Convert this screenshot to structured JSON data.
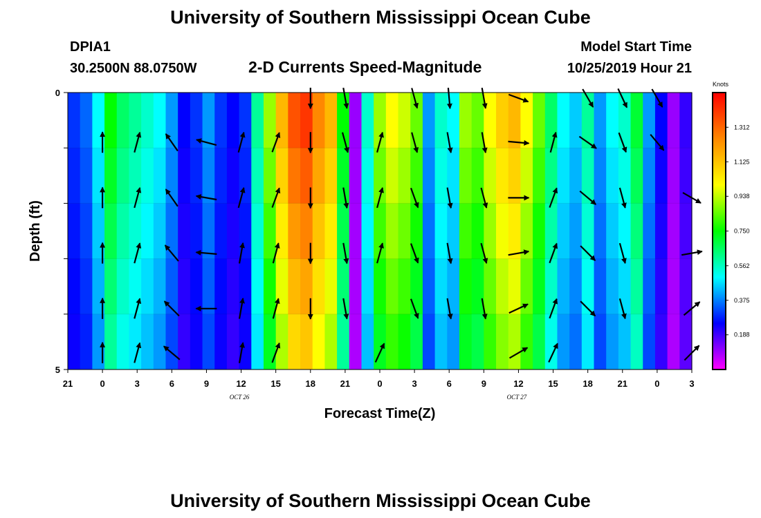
{
  "header": {
    "title": "University of Southern Mississippi Ocean Cube",
    "station": "DPIA1",
    "coords": "30.2500N 88.0750W",
    "subtitle": "2-D Currents Speed-Magnitude",
    "start_label": "Model Start Time",
    "start_value": "10/25/2019 Hour 21"
  },
  "footer": {
    "title": "University of Southern Mississippi Ocean Cube"
  },
  "colors": {
    "scale": [
      "#ff00ff",
      "#0000ff",
      "#00ffff",
      "#00ff00",
      "#ffff00",
      "#ff8800",
      "#ff0000"
    ]
  },
  "chart_data": {
    "type": "heatmap",
    "title": "2-D Currents Speed-Magnitude",
    "xlabel": "Forecast Time(Z)",
    "ylabel": "Depth (ft)",
    "x_tick_labels": [
      "21",
      "0",
      "3",
      "6",
      "9",
      "12",
      "15",
      "18",
      "21",
      "0",
      "3",
      "6",
      "9",
      "12",
      "15",
      "18",
      "21",
      "0",
      "3"
    ],
    "date_labels": [
      {
        "text": "OCT 26",
        "after_tick": 5
      },
      {
        "text": "OCT 27",
        "after_tick": 13
      }
    ],
    "y_ticks": [
      {
        "value": 0,
        "label": "0"
      },
      {
        "value": 1,
        "label": ""
      },
      {
        "value": 2,
        "label": ""
      },
      {
        "value": 3,
        "label": ""
      },
      {
        "value": 4,
        "label": ""
      },
      {
        "value": 5,
        "label": "5"
      }
    ],
    "ylim": [
      0,
      5
    ],
    "colorbar": {
      "unit": "Knots",
      "range": [
        0,
        1.5
      ],
      "tick_labels": [
        "0.188",
        "0.375",
        "0.562",
        "0.750",
        "0.938",
        "1.125",
        "1.312"
      ]
    },
    "speed_profile_knots": [
      0.3,
      0.35,
      0.5,
      0.75,
      0.65,
      0.6,
      0.55,
      0.5,
      0.4,
      0.25,
      0.3,
      0.4,
      0.3,
      0.25,
      0.3,
      0.6,
      0.9,
      1.15,
      1.35,
      1.4,
      1.25,
      1.15,
      0.75,
      0.1,
      0.55,
      0.9,
      1.0,
      0.95,
      0.85,
      0.4,
      0.55,
      0.5,
      0.9,
      0.85,
      1.0,
      1.1,
      1.15,
      1.0,
      0.85,
      0.65,
      0.5,
      0.45,
      0.6,
      0.4,
      0.5,
      0.55,
      0.7,
      0.4,
      0.25,
      0.1,
      0.2
    ],
    "vector_rows": [
      {
        "depth": 0.1,
        "dir_deg": [
          null,
          null,
          null,
          null,
          null,
          null,
          null,
          180,
          170,
          null,
          165,
          175,
          170,
          110,
          null,
          150,
          155,
          150,
          null
        ]
      },
      {
        "depth": 0.9,
        "dir_deg": [
          null,
          0,
          15,
          -35,
          -75,
          15,
          20,
          180,
          165,
          15,
          165,
          170,
          170,
          95,
          15,
          125,
          160,
          140,
          null
        ]
      },
      {
        "depth": 1.9,
        "dir_deg": [
          null,
          0,
          15,
          -35,
          -80,
          15,
          20,
          180,
          170,
          15,
          160,
          170,
          165,
          90,
          20,
          130,
          165,
          null,
          120
        ]
      },
      {
        "depth": 2.9,
        "dir_deg": [
          null,
          0,
          15,
          -40,
          -85,
          10,
          15,
          180,
          170,
          15,
          160,
          170,
          165,
          80,
          20,
          135,
          165,
          null,
          80
        ]
      },
      {
        "depth": 3.9,
        "dir_deg": [
          null,
          0,
          15,
          -45,
          -90,
          10,
          15,
          180,
          170,
          null,
          160,
          170,
          170,
          65,
          20,
          135,
          165,
          null,
          50
        ]
      },
      {
        "depth": 4.7,
        "dir_deg": [
          null,
          0,
          15,
          -50,
          null,
          10,
          20,
          null,
          null,
          25,
          null,
          null,
          null,
          60,
          25,
          null,
          null,
          null,
          45
        ]
      }
    ]
  }
}
